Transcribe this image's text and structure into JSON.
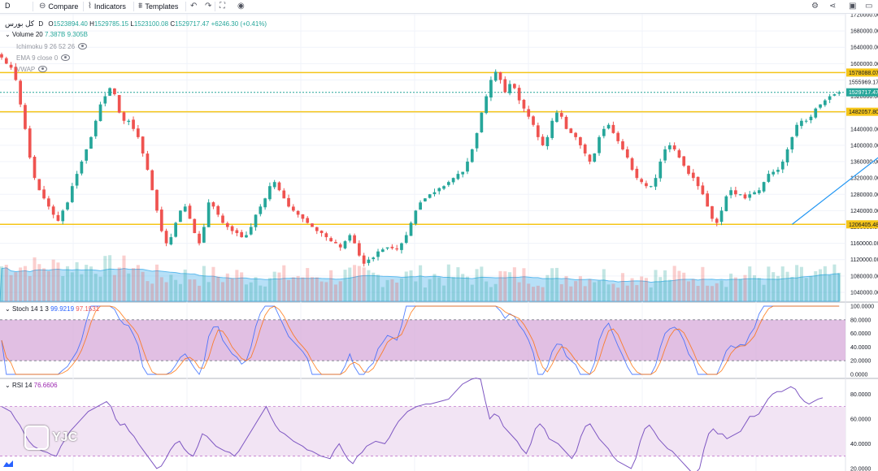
{
  "toolbar": {
    "interval": "D",
    "compare": "Compare",
    "indicators": "Indicators",
    "templates": "Templates"
  },
  "symbol": {
    "name": "کل بورس",
    "interval": "D",
    "ohlc": {
      "O": "1523894.40",
      "H": "1529785.15",
      "L": "1523100.08",
      "C": "1529717.47",
      "change": "+6246.30 (+0.41%)"
    }
  },
  "indicators": {
    "volume": {
      "label": "Volume 20",
      "v1": "7.387B",
      "v2": "9.305B"
    },
    "ichimoku": "Ichimoku 9 26 52 26",
    "ema": "EMA 9 close 0",
    "vwap": "VWAP",
    "stoch": {
      "label": "Stoch 14 1 3",
      "k": "99.9219",
      "d": "97.1531"
    },
    "rsi": {
      "label": "RSI 14",
      "value": "76.6606"
    }
  },
  "watermark": "YJC",
  "colors": {
    "up": "#26a69a",
    "down": "#ef5350",
    "hline": "#f5c518",
    "last_price": "#26a69a",
    "stoch_band": "#d7aad9",
    "rsi_band": "#f2e4f4",
    "trendline": "#2196f3",
    "volume_ma": "#5fbbee"
  },
  "chart_data": [
    {
      "type": "candlestick",
      "title": "کل بورس",
      "y_ticks": [
        "1720000.00",
        "1680000.00",
        "1640000.00",
        "1600000.00",
        "1560000.00",
        "1520000.00",
        "1480000.00",
        "1440000.00",
        "1400000.00",
        "1360000.00",
        "1320000.00",
        "1280000.00",
        "1240000.00",
        "1200000.00",
        "1160000.00",
        "1120000.00",
        "1080000.00",
        "1040000.00"
      ],
      "ylim": [
        1018000,
        1722000
      ],
      "price_lines": [
        {
          "value": 1578088.07,
          "label": "1578088.07"
        },
        {
          "value": 1529717.47,
          "label": "1529717.47",
          "last": true
        },
        {
          "value": 1482057.8,
          "label": "1482057.80"
        },
        {
          "value": 1206405.48,
          "label": "1206405.48"
        }
      ],
      "extra_labels": [
        {
          "value": 1555000,
          "label": "1555969.17"
        }
      ],
      "trendline": {
        "from": [
          168,
          1206405
        ],
        "to": [
          199,
          1529700
        ]
      },
      "closes": [
        1615000,
        1600000,
        1590000,
        1560000,
        1500000,
        1440000,
        1370000,
        1320000,
        1290000,
        1270000,
        1250000,
        1230000,
        1215000,
        1240000,
        1260000,
        1300000,
        1330000,
        1360000,
        1390000,
        1420000,
        1460000,
        1500000,
        1520000,
        1540000,
        1525000,
        1480000,
        1460000,
        1460000,
        1440000,
        1420000,
        1380000,
        1340000,
        1290000,
        1240000,
        1190000,
        1160000,
        1175000,
        1210000,
        1240000,
        1250000,
        1220000,
        1185000,
        1160000,
        1200000,
        1260000,
        1250000,
        1230000,
        1210000,
        1200000,
        1190000,
        1185000,
        1175000,
        1180000,
        1200000,
        1230000,
        1250000,
        1270000,
        1300000,
        1310000,
        1290000,
        1270000,
        1250000,
        1240000,
        1230000,
        1220000,
        1210000,
        1200000,
        1190000,
        1185000,
        1175000,
        1165000,
        1160000,
        1150000,
        1165000,
        1180000,
        1160000,
        1130000,
        1110000,
        1120000,
        1125000,
        1140000,
        1145000,
        1150000,
        1148000,
        1145000,
        1160000,
        1180000,
        1210000,
        1240000,
        1260000,
        1270000,
        1280000,
        1285000,
        1295000,
        1300000,
        1310000,
        1320000,
        1330000,
        1335000,
        1360000,
        1390000,
        1430000,
        1480000,
        1520000,
        1560000,
        1580000,
        1560000,
        1530000,
        1550000,
        1540000,
        1510000,
        1490000,
        1470000,
        1450000,
        1420000,
        1400000,
        1420000,
        1460000,
        1480000,
        1470000,
        1440000,
        1430000,
        1420000,
        1400000,
        1380000,
        1360000,
        1380000,
        1420000,
        1440000,
        1450000,
        1430000,
        1410000,
        1390000,
        1370000,
        1340000,
        1320000,
        1310000,
        1300000,
        1300000,
        1320000,
        1360000,
        1390000,
        1400000,
        1390000,
        1370000,
        1350000,
        1330000,
        1320000,
        1300000,
        1280000,
        1250000,
        1220000,
        1210000,
        1240000,
        1275000,
        1290000,
        1280000,
        1280000,
        1270000,
        1280000,
        1285000,
        1290000,
        1310000,
        1330000,
        1335000,
        1340000,
        1360000,
        1390000,
        1420000,
        1450000,
        1460000,
        1460000,
        1470000,
        1490000,
        1500000,
        1510000,
        1520000,
        1525000,
        1529717
      ]
    },
    {
      "type": "line",
      "title": "Stoch 14 1 3",
      "y_ticks": [
        "100.0000",
        "80.0000",
        "60.0000",
        "40.0000",
        "20.0000",
        "0.0000"
      ],
      "ylim": [
        0,
        100
      ],
      "bands": [
        20,
        80
      ],
      "series": [
        {
          "name": "%K",
          "last": 99.9219
        },
        {
          "name": "%D",
          "last": 97.1531
        }
      ]
    },
    {
      "type": "line",
      "title": "RSI 14",
      "y_ticks": [
        "80.0000",
        "60.0000",
        "40.0000",
        "20.0000"
      ],
      "ylim": [
        18,
        92
      ],
      "bands": [
        30,
        70
      ],
      "values": [
        70,
        68,
        66,
        60,
        55,
        48,
        42,
        38,
        36,
        34,
        33,
        31,
        30,
        38,
        44,
        50,
        54,
        58,
        62,
        66,
        68,
        70,
        72,
        74,
        70,
        60,
        55,
        56,
        50,
        46,
        40,
        35,
        30,
        25,
        20,
        22,
        28,
        35,
        40,
        42,
        36,
        32,
        30,
        38,
        48,
        46,
        42,
        38,
        36,
        34,
        33,
        30,
        34,
        40,
        46,
        52,
        58,
        64,
        70,
        62,
        55,
        50,
        48,
        45,
        42,
        40,
        38,
        35,
        34,
        32,
        30,
        29,
        28,
        35,
        40,
        33,
        27,
        24,
        30,
        33,
        38,
        40,
        42,
        41,
        40,
        45,
        52,
        58,
        62,
        66,
        68,
        70,
        71,
        72,
        72,
        73,
        74,
        75,
        76,
        80,
        84,
        88,
        90,
        92,
        93,
        92,
        75,
        60,
        64,
        62,
        54,
        50,
        46,
        42,
        36,
        32,
        40,
        52,
        56,
        52,
        44,
        42,
        40,
        36,
        32,
        28,
        34,
        46,
        54,
        56,
        50,
        44,
        40,
        36,
        30,
        26,
        24,
        22,
        20,
        28,
        42,
        52,
        55,
        50,
        44,
        40,
        36,
        34,
        30,
        26,
        22,
        18,
        16,
        20,
        36,
        48,
        52,
        48,
        48,
        44,
        46,
        48,
        50,
        56,
        62,
        62,
        64,
        70,
        76,
        80,
        82,
        82,
        84,
        86,
        84,
        78,
        74,
        72,
        74,
        76,
        77
      ],
      "last": 76.6606
    }
  ]
}
